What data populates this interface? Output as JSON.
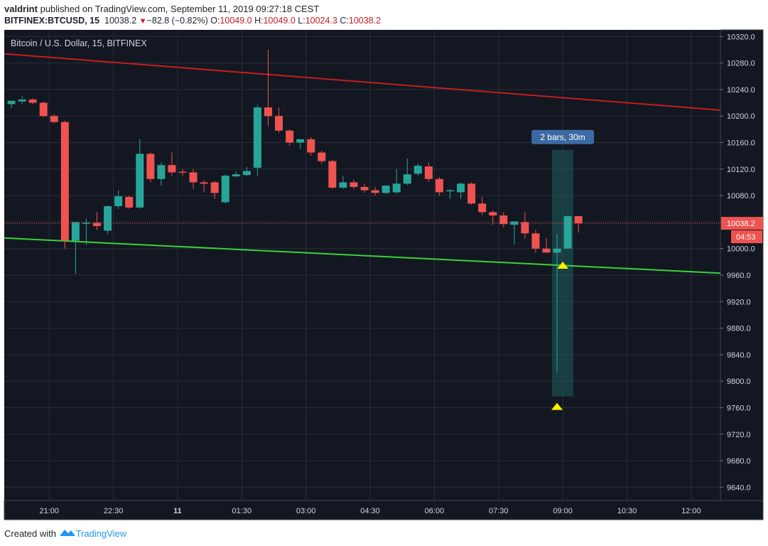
{
  "header": {
    "author": "valdrint",
    "published_text": "published on TradingView.com, September 11, 2019 09:27:18 CEST",
    "symbol": "BITFINEX:BTCUSD, 15",
    "last": "10038.2",
    "change": "−82.8 (−0.82%)",
    "open_label": "O:",
    "open": "10049.0",
    "high_label": "H:",
    "high": "10049.0",
    "low_label": "L:",
    "low": "10024.3",
    "close_label": "C:",
    "close": "10038.2"
  },
  "footer": {
    "created_with": "Created with",
    "brand": "TradingView"
  },
  "colors": {
    "background": "#131722",
    "grid": "#2a2e39",
    "up": "#26a69a",
    "down": "#ef5350",
    "resistance_line": "#c41e1e",
    "support_line": "#3ad23a",
    "measure_fill": "#1d5e5e",
    "measure_label_bg": "#3b6aa3",
    "marker": "#ffee00",
    "price_label": "#ef5350"
  },
  "chart_data": {
    "type": "candlestick",
    "title": "Bitcoin / U.S. Dollar, 15, BITFINEX",
    "interval_minutes": 15,
    "ylim": [
      9620,
      10330
    ],
    "y_ticks": [
      9640,
      9680,
      9720,
      9760,
      9800,
      9840,
      9880,
      9920,
      9960,
      10000,
      10040,
      10080,
      10120,
      10160,
      10200,
      10240,
      10280,
      10320
    ],
    "y_tick_labels": [
      "9640.0",
      "9680.0",
      "9720.0",
      "9760.0",
      "9800.0",
      "9840.0",
      "9880.0",
      "9920.0",
      "9960.0",
      "10000.0",
      "10040.0",
      "10080.0",
      "10120.0",
      "10160.0",
      "10200.0",
      "10240.0",
      "10280.0",
      "10320.0"
    ],
    "x_ticks": [
      {
        "time": "2019-09-10T21:00",
        "label": "21:00"
      },
      {
        "time": "2019-09-10T22:30",
        "label": "22:30"
      },
      {
        "time": "2019-09-11T00:00",
        "label": "11"
      },
      {
        "time": "2019-09-11T01:30",
        "label": "01:30"
      },
      {
        "time": "2019-09-11T03:00",
        "label": "03:00"
      },
      {
        "time": "2019-09-11T04:30",
        "label": "04:30"
      },
      {
        "time": "2019-09-11T06:00",
        "label": "06:00"
      },
      {
        "time": "2019-09-11T07:30",
        "label": "07:30"
      },
      {
        "time": "2019-09-11T09:00",
        "label": "09:00"
      },
      {
        "time": "2019-09-11T10:30",
        "label": "10:30"
      },
      {
        "time": "2019-09-11T12:00",
        "label": "12:00"
      }
    ],
    "x_range": [
      "2019-09-10T19:57",
      "2019-09-11T12:41"
    ],
    "candles": [
      {
        "t": "2019-09-10T20:07",
        "o": 10218,
        "h": 10223,
        "l": 10212,
        "c": 10223
      },
      {
        "t": "2019-09-10T20:22",
        "o": 10222,
        "h": 10230,
        "l": 10218,
        "c": 10225
      },
      {
        "t": "2019-09-10T20:37",
        "o": 10225,
        "h": 10227,
        "l": 10218,
        "c": 10220
      },
      {
        "t": "2019-09-10T20:52",
        "o": 10220,
        "h": 10222,
        "l": 10198,
        "c": 10200
      },
      {
        "t": "2019-09-10T21:07",
        "o": 10200,
        "h": 10203,
        "l": 10189,
        "c": 10191
      },
      {
        "t": "2019-09-10T21:22",
        "o": 10191,
        "h": 10193,
        "l": 10000,
        "c": 10012
      },
      {
        "t": "2019-09-10T21:37",
        "o": 10012,
        "h": 10040,
        "l": 9962,
        "c": 10040
      },
      {
        "t": "2019-09-10T21:52",
        "o": 10038,
        "h": 10045,
        "l": 10005,
        "c": 10039
      },
      {
        "t": "2019-09-10T22:07",
        "o": 10039,
        "h": 10055,
        "l": 10028,
        "c": 10034
      },
      {
        "t": "2019-09-10T22:22",
        "o": 10027,
        "h": 10065,
        "l": 10022,
        "c": 10064
      },
      {
        "t": "2019-09-10T22:37",
        "o": 10064,
        "h": 10088,
        "l": 10060,
        "c": 10079
      },
      {
        "t": "2019-09-10T22:52",
        "o": 10078,
        "h": 10080,
        "l": 10060,
        "c": 10062
      },
      {
        "t": "2019-09-10T23:07",
        "o": 10062,
        "h": 10165,
        "l": 10060,
        "c": 10143
      },
      {
        "t": "2019-09-10T23:22",
        "o": 10143,
        "h": 10145,
        "l": 10100,
        "c": 10105
      },
      {
        "t": "2019-09-10T23:37",
        "o": 10105,
        "h": 10130,
        "l": 10095,
        "c": 10126
      },
      {
        "t": "2019-09-10T23:52",
        "o": 10126,
        "h": 10145,
        "l": 10110,
        "c": 10115
      },
      {
        "t": "2019-09-11T00:07",
        "o": 10116,
        "h": 10120,
        "l": 10110,
        "c": 10115
      },
      {
        "t": "2019-09-11T00:22",
        "o": 10115,
        "h": 10120,
        "l": 10090,
        "c": 10100
      },
      {
        "t": "2019-09-11T00:37",
        "o": 10100,
        "h": 10103,
        "l": 10085,
        "c": 10098
      },
      {
        "t": "2019-09-11T00:52",
        "o": 10100,
        "h": 10102,
        "l": 10075,
        "c": 10084
      },
      {
        "t": "2019-09-11T01:07",
        "o": 10070,
        "h": 10112,
        "l": 10068,
        "c": 10110
      },
      {
        "t": "2019-09-11T01:22",
        "o": 10109,
        "h": 10117,
        "l": 10108,
        "c": 10112
      },
      {
        "t": "2019-09-11T01:37",
        "o": 10111,
        "h": 10123,
        "l": 10110,
        "c": 10117
      },
      {
        "t": "2019-09-11T01:52",
        "o": 10122,
        "h": 10217,
        "l": 10110,
        "c": 10213
      },
      {
        "t": "2019-09-11T02:07",
        "o": 10213,
        "h": 10300,
        "l": 10185,
        "c": 10200
      },
      {
        "t": "2019-09-11T02:22",
        "o": 10200,
        "h": 10213,
        "l": 10175,
        "c": 10178
      },
      {
        "t": "2019-09-11T02:37",
        "o": 10178,
        "h": 10180,
        "l": 10155,
        "c": 10160
      },
      {
        "t": "2019-09-11T02:52",
        "o": 10160,
        "h": 10163,
        "l": 10150,
        "c": 10165
      },
      {
        "t": "2019-09-11T03:07",
        "o": 10165,
        "h": 10168,
        "l": 10140,
        "c": 10145
      },
      {
        "t": "2019-09-11T03:22",
        "o": 10145,
        "h": 10148,
        "l": 10128,
        "c": 10132
      },
      {
        "t": "2019-09-11T03:37",
        "o": 10132,
        "h": 10134,
        "l": 10090,
        "c": 10092
      },
      {
        "t": "2019-09-11T03:52",
        "o": 10092,
        "h": 10110,
        "l": 10090,
        "c": 10100
      },
      {
        "t": "2019-09-11T04:07",
        "o": 10100,
        "h": 10104,
        "l": 10090,
        "c": 10093
      },
      {
        "t": "2019-09-11T04:22",
        "o": 10093,
        "h": 10098,
        "l": 10084,
        "c": 10088
      },
      {
        "t": "2019-09-11T04:37",
        "o": 10088,
        "h": 10093,
        "l": 10080,
        "c": 10084
      },
      {
        "t": "2019-09-11T04:52",
        "o": 10084,
        "h": 10092,
        "l": 10082,
        "c": 10095
      },
      {
        "t": "2019-09-11T05:07",
        "o": 10085,
        "h": 10120,
        "l": 10083,
        "c": 10098
      },
      {
        "t": "2019-09-11T05:22",
        "o": 10098,
        "h": 10136,
        "l": 10096,
        "c": 10112
      },
      {
        "t": "2019-09-11T05:37",
        "o": 10113,
        "h": 10128,
        "l": 10110,
        "c": 10125
      },
      {
        "t": "2019-09-11T05:52",
        "o": 10124,
        "h": 10130,
        "l": 10101,
        "c": 10105
      },
      {
        "t": "2019-09-11T06:07",
        "o": 10105,
        "h": 10108,
        "l": 10080,
        "c": 10085
      },
      {
        "t": "2019-09-11T06:22",
        "o": 10087,
        "h": 10090,
        "l": 10075,
        "c": 10088
      },
      {
        "t": "2019-09-11T06:37",
        "o": 10085,
        "h": 10100,
        "l": 10075,
        "c": 10098
      },
      {
        "t": "2019-09-11T06:52",
        "o": 10098,
        "h": 10100,
        "l": 10066,
        "c": 10068
      },
      {
        "t": "2019-09-11T07:07",
        "o": 10068,
        "h": 10078,
        "l": 10051,
        "c": 10055
      },
      {
        "t": "2019-09-11T07:22",
        "o": 10055,
        "h": 10058,
        "l": 10036,
        "c": 10050
      },
      {
        "t": "2019-09-11T07:37",
        "o": 10050,
        "h": 10055,
        "l": 10032,
        "c": 10037
      },
      {
        "t": "2019-09-11T07:52",
        "o": 10036,
        "h": 10041,
        "l": 10006,
        "c": 10041
      },
      {
        "t": "2019-09-11T08:07",
        "o": 10040,
        "h": 10055,
        "l": 10015,
        "c": 10023
      },
      {
        "t": "2019-09-11T08:22",
        "o": 10023,
        "h": 10028,
        "l": 9994,
        "c": 10000
      },
      {
        "t": "2019-09-11T08:37",
        "o": 10000,
        "h": 10016,
        "l": 9994,
        "c": 9994
      },
      {
        "t": "2019-09-11T08:52",
        "o": 9994,
        "h": 10022,
        "l": 9813,
        "c": 10000
      },
      {
        "t": "2019-09-11T09:07",
        "o": 10000,
        "h": 10050,
        "l": 10000,
        "c": 10049
      },
      {
        "t": "2019-09-11T09:22",
        "o": 10049,
        "h": 10049,
        "l": 10024,
        "c": 10038
      }
    ],
    "trend_lines": [
      {
        "name": "resistance",
        "from": {
          "t": "2019-09-10T19:57",
          "price": 10294
        },
        "to": {
          "t": "2019-09-11T12:41",
          "price": 10209
        }
      },
      {
        "name": "support",
        "from": {
          "t": "2019-09-10T19:57",
          "price": 10016
        },
        "to": {
          "t": "2019-09-11T12:41",
          "price": 9963
        }
      }
    ],
    "measure_box": {
      "label": "2 bars, 30m",
      "from_t": "2019-09-11T08:45",
      "to_t": "2019-09-11T09:15",
      "top_price": 10149,
      "bottom_price": 9777
    },
    "markers": [
      {
        "t": "2019-09-11T08:52",
        "price": 9762
      },
      {
        "t": "2019-09-11T09:00",
        "price": 9975
      }
    ],
    "last_price": {
      "value": 10038.2,
      "label": "10038.2",
      "countdown": "04:53"
    }
  }
}
